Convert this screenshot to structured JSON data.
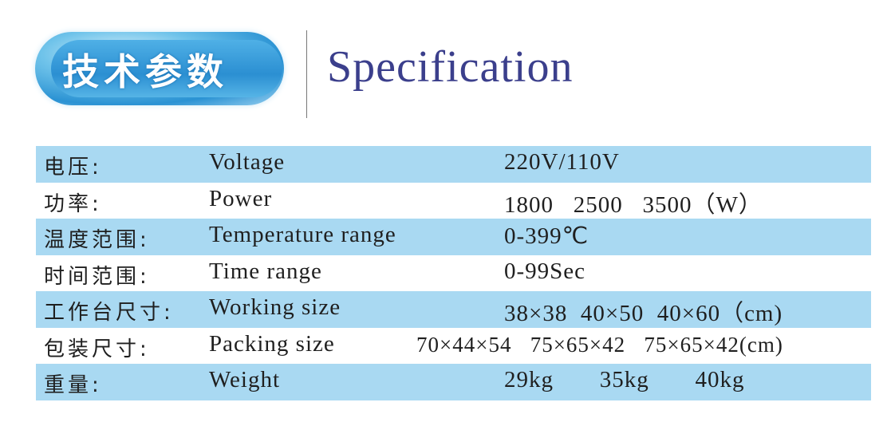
{
  "header": {
    "badge_text": "技术参数",
    "title": "Specification"
  },
  "colors": {
    "row_band": "#a9d9f2",
    "title": "#3b3f8c",
    "badge": "#2b8fd2"
  },
  "rows": [
    {
      "cn": "电压:",
      "en": "Voltage",
      "value": "220V/110V",
      "banded": true
    },
    {
      "cn": "功率:",
      "en": "Power",
      "value": "1800   2500   3500（W）",
      "banded": false
    },
    {
      "cn": "温度范围:",
      "en": "Temperature range",
      "value": "0-399℃",
      "banded": true
    },
    {
      "cn": "时间范围:",
      "en": "Time range",
      "value": "0-99Sec",
      "banded": false
    },
    {
      "cn": "工作台尺寸:",
      "en": "Working size",
      "value": "38×38  40×50  40×60（cm)",
      "banded": true
    },
    {
      "cn": "包装尺寸:",
      "en": "Packing size",
      "value": "70×44×54   75×65×42   75×65×42(cm)",
      "banded": false
    },
    {
      "cn": "重量:",
      "en": "Weight",
      "value": "29kg       35kg       40kg",
      "banded": true
    }
  ]
}
